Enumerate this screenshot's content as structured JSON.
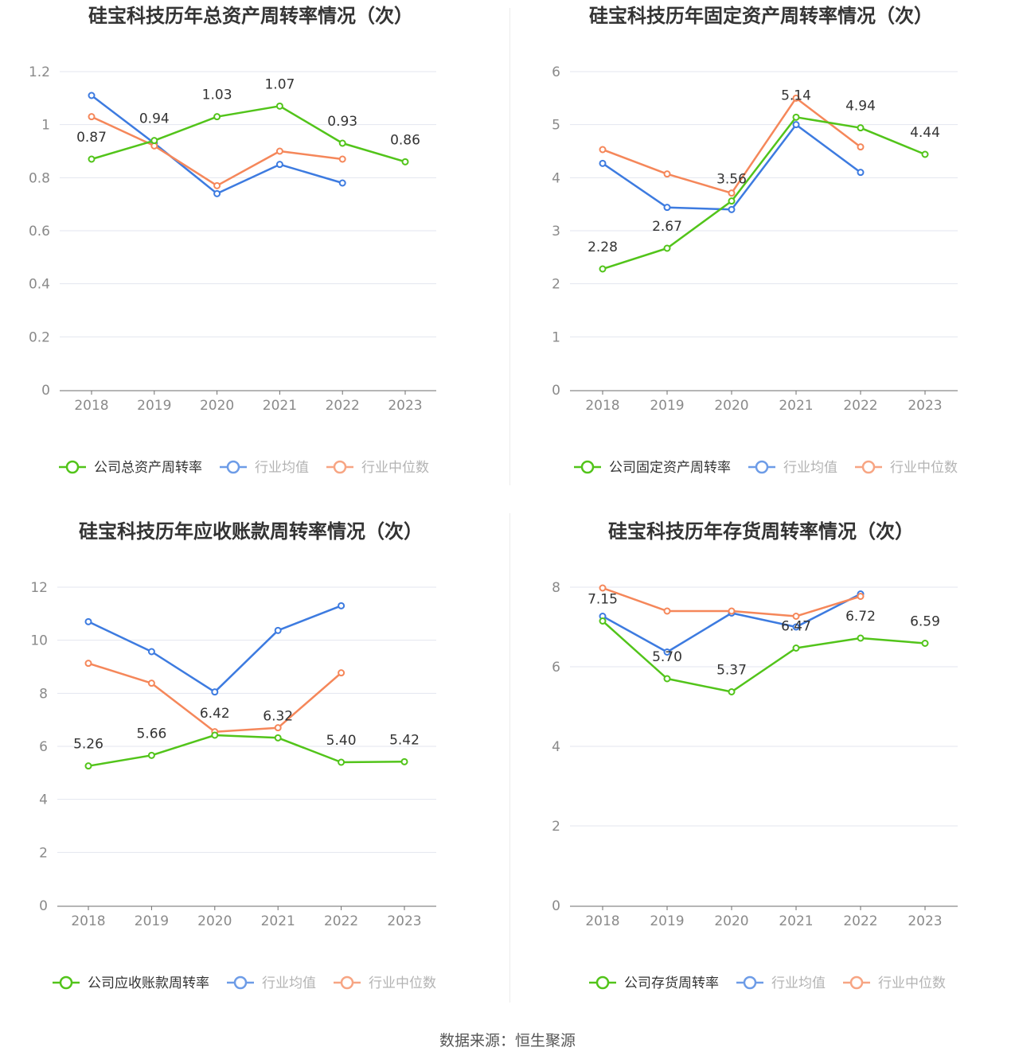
{
  "footer": {
    "source": "数据来源：恒生聚源"
  },
  "chart_data": [
    {
      "type": "line",
      "title": "硅宝科技历年总资产周转率情况（次）",
      "x": [
        "2018",
        "2019",
        "2020",
        "2021",
        "2022",
        "2023"
      ],
      "ylim": [
        0,
        1.2
      ],
      "yticks": [
        "0",
        "0.2",
        "0.4",
        "0.6",
        "0.8",
        "1",
        "1.2"
      ],
      "ytick_values": [
        0,
        0.2,
        0.4,
        0.6,
        0.8,
        1.0,
        1.2
      ],
      "grid": true,
      "legend": "bottom",
      "series": [
        {
          "name": "公司总资产周转率",
          "color": "#52c41a",
          "values": [
            0.87,
            0.94,
            1.03,
            1.07,
            0.93,
            0.86
          ],
          "labels": [
            "0.87",
            "0.94",
            "1.03",
            "1.07",
            "0.93",
            "0.86"
          ]
        },
        {
          "name": "行业均值",
          "color": "#3d7be0",
          "values": [
            1.11,
            0.93,
            0.74,
            0.85,
            0.78,
            null
          ]
        },
        {
          "name": "行业中位数",
          "color": "#f5875a",
          "values": [
            1.03,
            0.92,
            0.77,
            0.9,
            0.87,
            null
          ]
        }
      ]
    },
    {
      "type": "line",
      "title": "硅宝科技历年固定资产周转率情况（次）",
      "x": [
        "2018",
        "2019",
        "2020",
        "2021",
        "2022",
        "2023"
      ],
      "ylim": [
        0,
        6
      ],
      "yticks": [
        "0",
        "1",
        "2",
        "3",
        "4",
        "5",
        "6"
      ],
      "ytick_values": [
        0,
        1,
        2,
        3,
        4,
        5,
        6
      ],
      "grid": true,
      "legend": "bottom",
      "series": [
        {
          "name": "公司固定资产周转率",
          "color": "#52c41a",
          "values": [
            2.28,
            2.67,
            3.56,
            5.14,
            4.94,
            4.44
          ],
          "labels": [
            "2.28",
            "2.67",
            "3.56",
            "5.14",
            "4.94",
            "4.44"
          ]
        },
        {
          "name": "行业均值",
          "color": "#3d7be0",
          "values": [
            4.27,
            3.44,
            3.4,
            5.0,
            4.1,
            null
          ]
        },
        {
          "name": "行业中位数",
          "color": "#f5875a",
          "values": [
            4.53,
            4.07,
            3.71,
            5.5,
            4.58,
            null
          ]
        }
      ]
    },
    {
      "type": "line",
      "title": "硅宝科技历年应收账款周转率情况（次）",
      "x": [
        "2018",
        "2019",
        "2020",
        "2021",
        "2022",
        "2023"
      ],
      "ylim": [
        0,
        12
      ],
      "yticks": [
        "0",
        "2",
        "4",
        "6",
        "8",
        "10",
        "12"
      ],
      "ytick_values": [
        0,
        2,
        4,
        6,
        8,
        10,
        12
      ],
      "grid": true,
      "legend": "bottom",
      "series": [
        {
          "name": "公司应收账款周转率",
          "color": "#52c41a",
          "values": [
            5.26,
            5.66,
            6.42,
            6.32,
            5.4,
            5.42
          ],
          "labels": [
            "5.26",
            "5.66",
            "6.42",
            "6.32",
            "5.40",
            "5.42"
          ]
        },
        {
          "name": "行业均值",
          "color": "#3d7be0",
          "values": [
            10.7,
            9.57,
            8.05,
            10.37,
            11.3,
            null
          ]
        },
        {
          "name": "行业中位数",
          "color": "#f5875a",
          "values": [
            9.13,
            8.38,
            6.55,
            6.7,
            8.77,
            null
          ]
        }
      ]
    },
    {
      "type": "line",
      "title": "硅宝科技历年存货周转率情况（次）",
      "x": [
        "2018",
        "2019",
        "2020",
        "2021",
        "2022",
        "2023"
      ],
      "ylim": [
        0,
        8
      ],
      "yticks": [
        "0",
        "2",
        "4",
        "6",
        "8"
      ],
      "ytick_values": [
        0,
        2,
        4,
        6,
        8
      ],
      "grid": true,
      "legend": "bottom",
      "series": [
        {
          "name": "公司存货周转率",
          "color": "#52c41a",
          "values": [
            7.15,
            5.7,
            5.37,
            6.47,
            6.72,
            6.59
          ],
          "labels": [
            "7.15",
            "5.70",
            "5.37",
            "6.47",
            "6.72",
            "6.59"
          ]
        },
        {
          "name": "行业均值",
          "color": "#3d7be0",
          "values": [
            7.27,
            6.37,
            7.35,
            7.0,
            7.83,
            null
          ]
        },
        {
          "name": "行业中位数",
          "color": "#f5875a",
          "values": [
            7.98,
            7.4,
            7.4,
            7.27,
            7.77,
            null
          ]
        }
      ]
    }
  ]
}
